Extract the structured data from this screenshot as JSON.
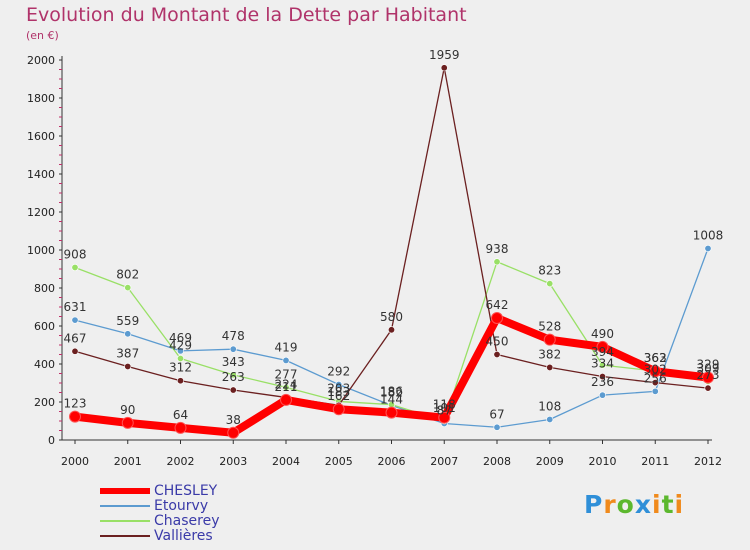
{
  "chart_data": {
    "type": "line",
    "title": "Evolution du Montant de la Dette par Habitant",
    "subtitle": "(en €)",
    "categories": [
      "2000",
      "2001",
      "2002",
      "2003",
      "2004",
      "2005",
      "2006",
      "2007",
      "2008",
      "2009",
      "2010",
      "2011",
      "2012"
    ],
    "ylim": [
      0,
      2000
    ],
    "yticks": [
      "0",
      "200",
      "400",
      "600",
      "800",
      "1000",
      "1200",
      "1400",
      "1600",
      "1800",
      "2000"
    ],
    "grid": false,
    "legend_placement": "bottom-left",
    "series": [
      {
        "name": "CHESLEY",
        "color": "#ff0000",
        "values": [
          123,
          90,
          64,
          38,
          211,
          162,
          144,
          118,
          642,
          528,
          490,
          362,
          329
        ]
      },
      {
        "name": "Etourvy",
        "color": "#5c9bd0",
        "values": [
          631,
          559,
          469,
          478,
          419,
          292,
          182,
          87,
          67,
          108,
          236,
          256,
          1008
        ]
      },
      {
        "name": "Chaserey",
        "color": "#99e066",
        "values": [
          908,
          802,
          429,
          343,
          277,
          203,
          186,
          101,
          938,
          823,
          394,
          363,
          309
        ]
      },
      {
        "name": "Vallières",
        "color": "#6b2020",
        "values": [
          467,
          387,
          312,
          263,
          224,
          183,
          580,
          1959,
          450,
          382,
          334,
          302,
          273
        ]
      }
    ]
  },
  "logo": {
    "text": "Proxiti"
  }
}
